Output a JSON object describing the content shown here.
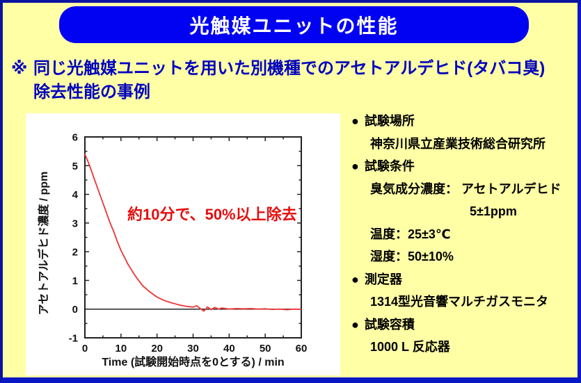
{
  "slide": {
    "title": "光触媒ユニットの性能",
    "subtitle_marker": "※",
    "subtitle_line1": "同じ光触媒ユニットを用いた別機種でのアセトアルデヒド(タバコ臭)",
    "subtitle_line2": "除去性能の事例",
    "colors": {
      "background": "#FFFFA6",
      "banner_blue": "#0202F2",
      "border_blue": "#0718C4",
      "subtitle_blue": "#0000BE",
      "annotation_red": "#E60D0D",
      "curve_red": "#EE3333"
    }
  },
  "chart_data": {
    "type": "line",
    "title": "",
    "xlabel": "Time (試験開始時点を0とする) / min",
    "ylabel": "アセトアルデヒド濃度 / ppm",
    "xlim": [
      0,
      60
    ],
    "ylim": [
      -1,
      6
    ],
    "x_ticks": [
      0,
      10,
      20,
      30,
      40,
      50,
      60
    ],
    "y_ticks": [
      -1,
      0,
      1,
      2,
      3,
      4,
      5,
      6
    ],
    "x_minor_step": 5,
    "y_minor_step": 0.5,
    "grid": false,
    "zero_line": true,
    "annotation": "約10分で、50%以上除去",
    "series": [
      {
        "name": "アセトアルデヒド濃度",
        "color": "#EE3333",
        "x": [
          0,
          1,
          2,
          3,
          4,
          5,
          6,
          7,
          8,
          9,
          10,
          12,
          14,
          16,
          18,
          20,
          22,
          24,
          26,
          28,
          30,
          31,
          32,
          33,
          34,
          35,
          36,
          37,
          38,
          40,
          42,
          44,
          46,
          48,
          50,
          52,
          54,
          56,
          58,
          60
        ],
        "y": [
          5.4,
          5.1,
          4.75,
          4.4,
          4.05,
          3.7,
          3.35,
          3.0,
          2.7,
          2.35,
          2.05,
          1.55,
          1.15,
          0.82,
          0.6,
          0.42,
          0.3,
          0.22,
          0.15,
          0.1,
          0.07,
          0.12,
          0.02,
          -0.07,
          0.08,
          -0.02,
          0.06,
          0.0,
          0.04,
          0.0,
          0.02,
          0.01,
          0.02,
          0.0,
          0.01,
          -0.01,
          0.0,
          -0.02,
          0.0,
          -0.01
        ]
      }
    ]
  },
  "info_panel": {
    "bullet": "●",
    "items": [
      {
        "type": "header",
        "text": "試験場所"
      },
      {
        "type": "detail",
        "text": "神奈川県立産業技術総合研究所"
      },
      {
        "type": "header",
        "text": "試験条件"
      },
      {
        "type": "detail",
        "text": "臭気成分濃度： アセトアルデヒド"
      },
      {
        "type": "detail2",
        "text": "5±1ppm"
      },
      {
        "type": "detail",
        "text": "温度：25±3℃"
      },
      {
        "type": "detail",
        "text": "湿度：50±10%"
      },
      {
        "type": "header",
        "text": "測定器"
      },
      {
        "type": "detail",
        "text": "1314型光音響マルチガスモニタ"
      },
      {
        "type": "header",
        "text": "試験容積"
      },
      {
        "type": "detail",
        "text": "1000 L 反応器"
      }
    ]
  }
}
